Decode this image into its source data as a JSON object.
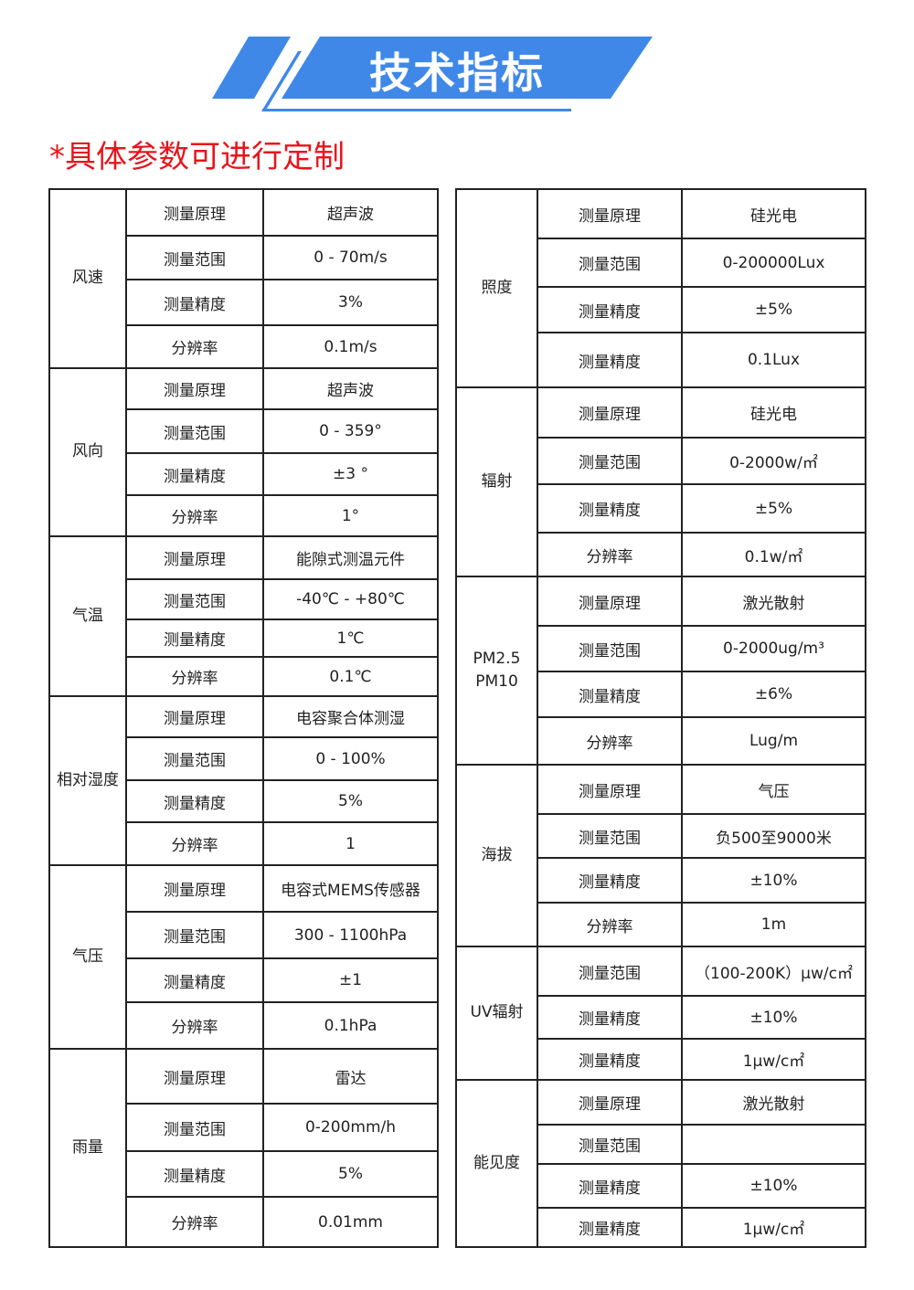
{
  "header": {
    "title": "技术指标",
    "accent_color": "#3f88e8"
  },
  "note": "*具体参数可进行定制",
  "note_color": "#e8141b",
  "left_table": [
    {
      "group": "风速",
      "rows": [
        [
          "测量原理",
          "超声波"
        ],
        [
          "测量范围",
          "0 - 70m/s"
        ],
        [
          "测量精度",
          "3%"
        ],
        [
          "分辨率",
          "0.1m/s"
        ]
      ]
    },
    {
      "group": "风向",
      "rows": [
        [
          "测量原理",
          "超声波"
        ],
        [
          "测量范围",
          "0  - 359°"
        ],
        [
          "测量精度",
          "±3 °"
        ],
        [
          "分辨率",
          "1°"
        ]
      ]
    },
    {
      "group": "气温",
      "rows": [
        [
          "测量原理",
          "能隙式测温元件"
        ],
        [
          "测量范围",
          "-40℃  -  +80℃"
        ],
        [
          "测量精度",
          "1℃"
        ],
        [
          "分辨率",
          "0.1℃"
        ]
      ]
    },
    {
      "group": "相对湿度",
      "rows": [
        [
          "测量原理",
          "电容聚合体测湿"
        ],
        [
          "测量范围",
          "0 - 100%"
        ],
        [
          "测量精度",
          "5%"
        ],
        [
          "分辨率",
          "1"
        ]
      ]
    },
    {
      "group": "气压",
      "rows": [
        [
          "测量原理",
          "电容式MEMS传感器"
        ],
        [
          "测量范围",
          "300  -  1100hPa"
        ],
        [
          "测量精度",
          "±1"
        ],
        [
          "分辨率",
          "0.1hPa"
        ]
      ]
    },
    {
      "group": "雨量",
      "rows": [
        [
          "测量原理",
          "雷达"
        ],
        [
          "测量范围",
          "0-200mm/h"
        ],
        [
          "测量精度",
          "5%"
        ],
        [
          "分辨率",
          "0.01mm"
        ]
      ]
    }
  ],
  "right_table": [
    {
      "group": "照度",
      "rows": [
        [
          "测量原理",
          "硅光电"
        ],
        [
          "测量范围",
          "0-200000Lux"
        ],
        [
          "测量精度",
          "±5%"
        ],
        [
          "测量精度",
          "0.1Lux"
        ]
      ]
    },
    {
      "group": "辐射",
      "rows": [
        [
          "测量原理",
          "硅光电"
        ],
        [
          "测量范围",
          "0-2000w/㎡"
        ],
        [
          "测量精度",
          "±5%"
        ],
        [
          "分辨率",
          "0.1w/㎡"
        ]
      ]
    },
    {
      "group": "PM2.5 PM10",
      "rows": [
        [
          "测量原理",
          "激光散射"
        ],
        [
          "测量范围",
          "0-2000ug/m³"
        ],
        [
          "测量精度",
          "±6%"
        ],
        [
          "分辨率",
          "Lug/m"
        ]
      ]
    },
    {
      "group": "海拔",
      "rows": [
        [
          "测量原理",
          "气压"
        ],
        [
          "测量范围",
          "负500至9000米"
        ],
        [
          "测量精度",
          "±10%"
        ],
        [
          "分辨率",
          "1m"
        ]
      ]
    },
    {
      "group": "UV辐射",
      "rows": [
        [
          "测量范围",
          "（100-200K）μw/c㎡"
        ],
        [
          "测量精度",
          "±10%"
        ],
        [
          "测量精度",
          "1μw/c㎡"
        ]
      ]
    },
    {
      "group": "能见度",
      "rows": [
        [
          "测量原理",
          "激光散射"
        ],
        [
          "测量范围",
          ""
        ],
        [
          "测量精度",
          "±10%"
        ],
        [
          "测量精度",
          "1μw/c㎡"
        ]
      ]
    }
  ]
}
